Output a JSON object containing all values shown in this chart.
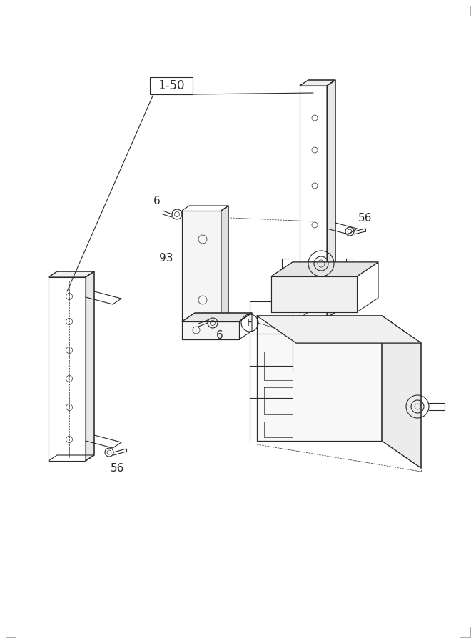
{
  "bg_color": "#ffffff",
  "lc": "#2a2a2a",
  "lw": 0.8,
  "tlw": 0.5,
  "figsize": [
    6.67,
    9.0
  ],
  "dpi": 100,
  "label_1_50": "1-50",
  "label_56_L": "56",
  "label_56_R": "56",
  "label_6_top": "6",
  "label_6_bot": "6",
  "label_93": "93",
  "label_F": "F"
}
